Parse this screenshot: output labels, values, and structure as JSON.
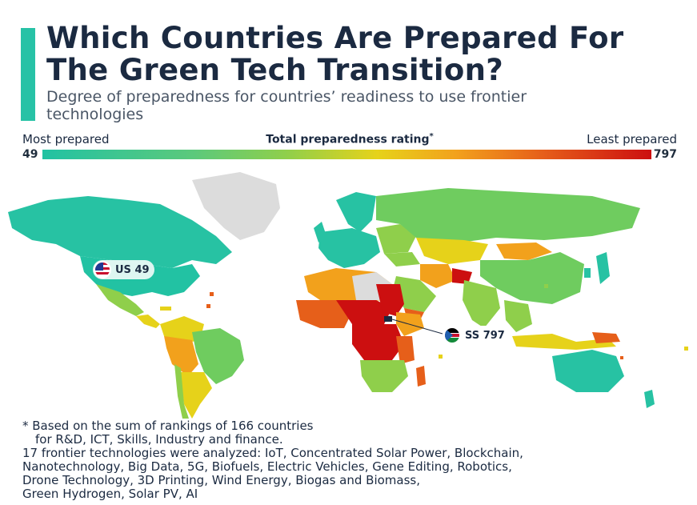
{
  "header": {
    "title": "Which Countries Are Prepared For The Green Tech Transition?",
    "subtitle": "Degree of preparedness for countries’ readiness to use frontier technologies"
  },
  "legend": {
    "left_label": "Most prepared",
    "center_label": "Total preparedness rating",
    "center_marker": "*",
    "right_label": "Least prepared",
    "min_value": "49",
    "max_value": "797",
    "gradient_colors": [
      "#22c2a3",
      "#5cc97b",
      "#8fcf4b",
      "#e6d21a",
      "#f2a11c",
      "#e65f1a",
      "#cc0f10"
    ]
  },
  "callouts": [
    {
      "code": "US",
      "value": "49",
      "flag_icon": "us-flag-icon"
    },
    {
      "code": "SS",
      "value": "797",
      "flag_icon": "south-sudan-flag-icon"
    }
  ],
  "colors": {
    "accent": "#27c2a6",
    "no_data": "#dcdcdc",
    "title": "#1b2a41"
  },
  "footnote": {
    "line1": "* Based on the sum of rankings of 166 countries",
    "line2": "for R&D, ICT, Skills, Industry and finance.",
    "line3": "17 frontier technologies were analyzed: IoT, Concentrated Solar Power, Blockchain,",
    "line4": "Nanotechnology, Big Data, 5G, Biofuels, Electric Vehicles, Gene Editing, Robotics,",
    "line5": "Drone Technology, 3D Printing, Wind Energy, Biogas and Biomass,",
    "line6": "Green Hydrogen, Solar PV, AI"
  }
}
